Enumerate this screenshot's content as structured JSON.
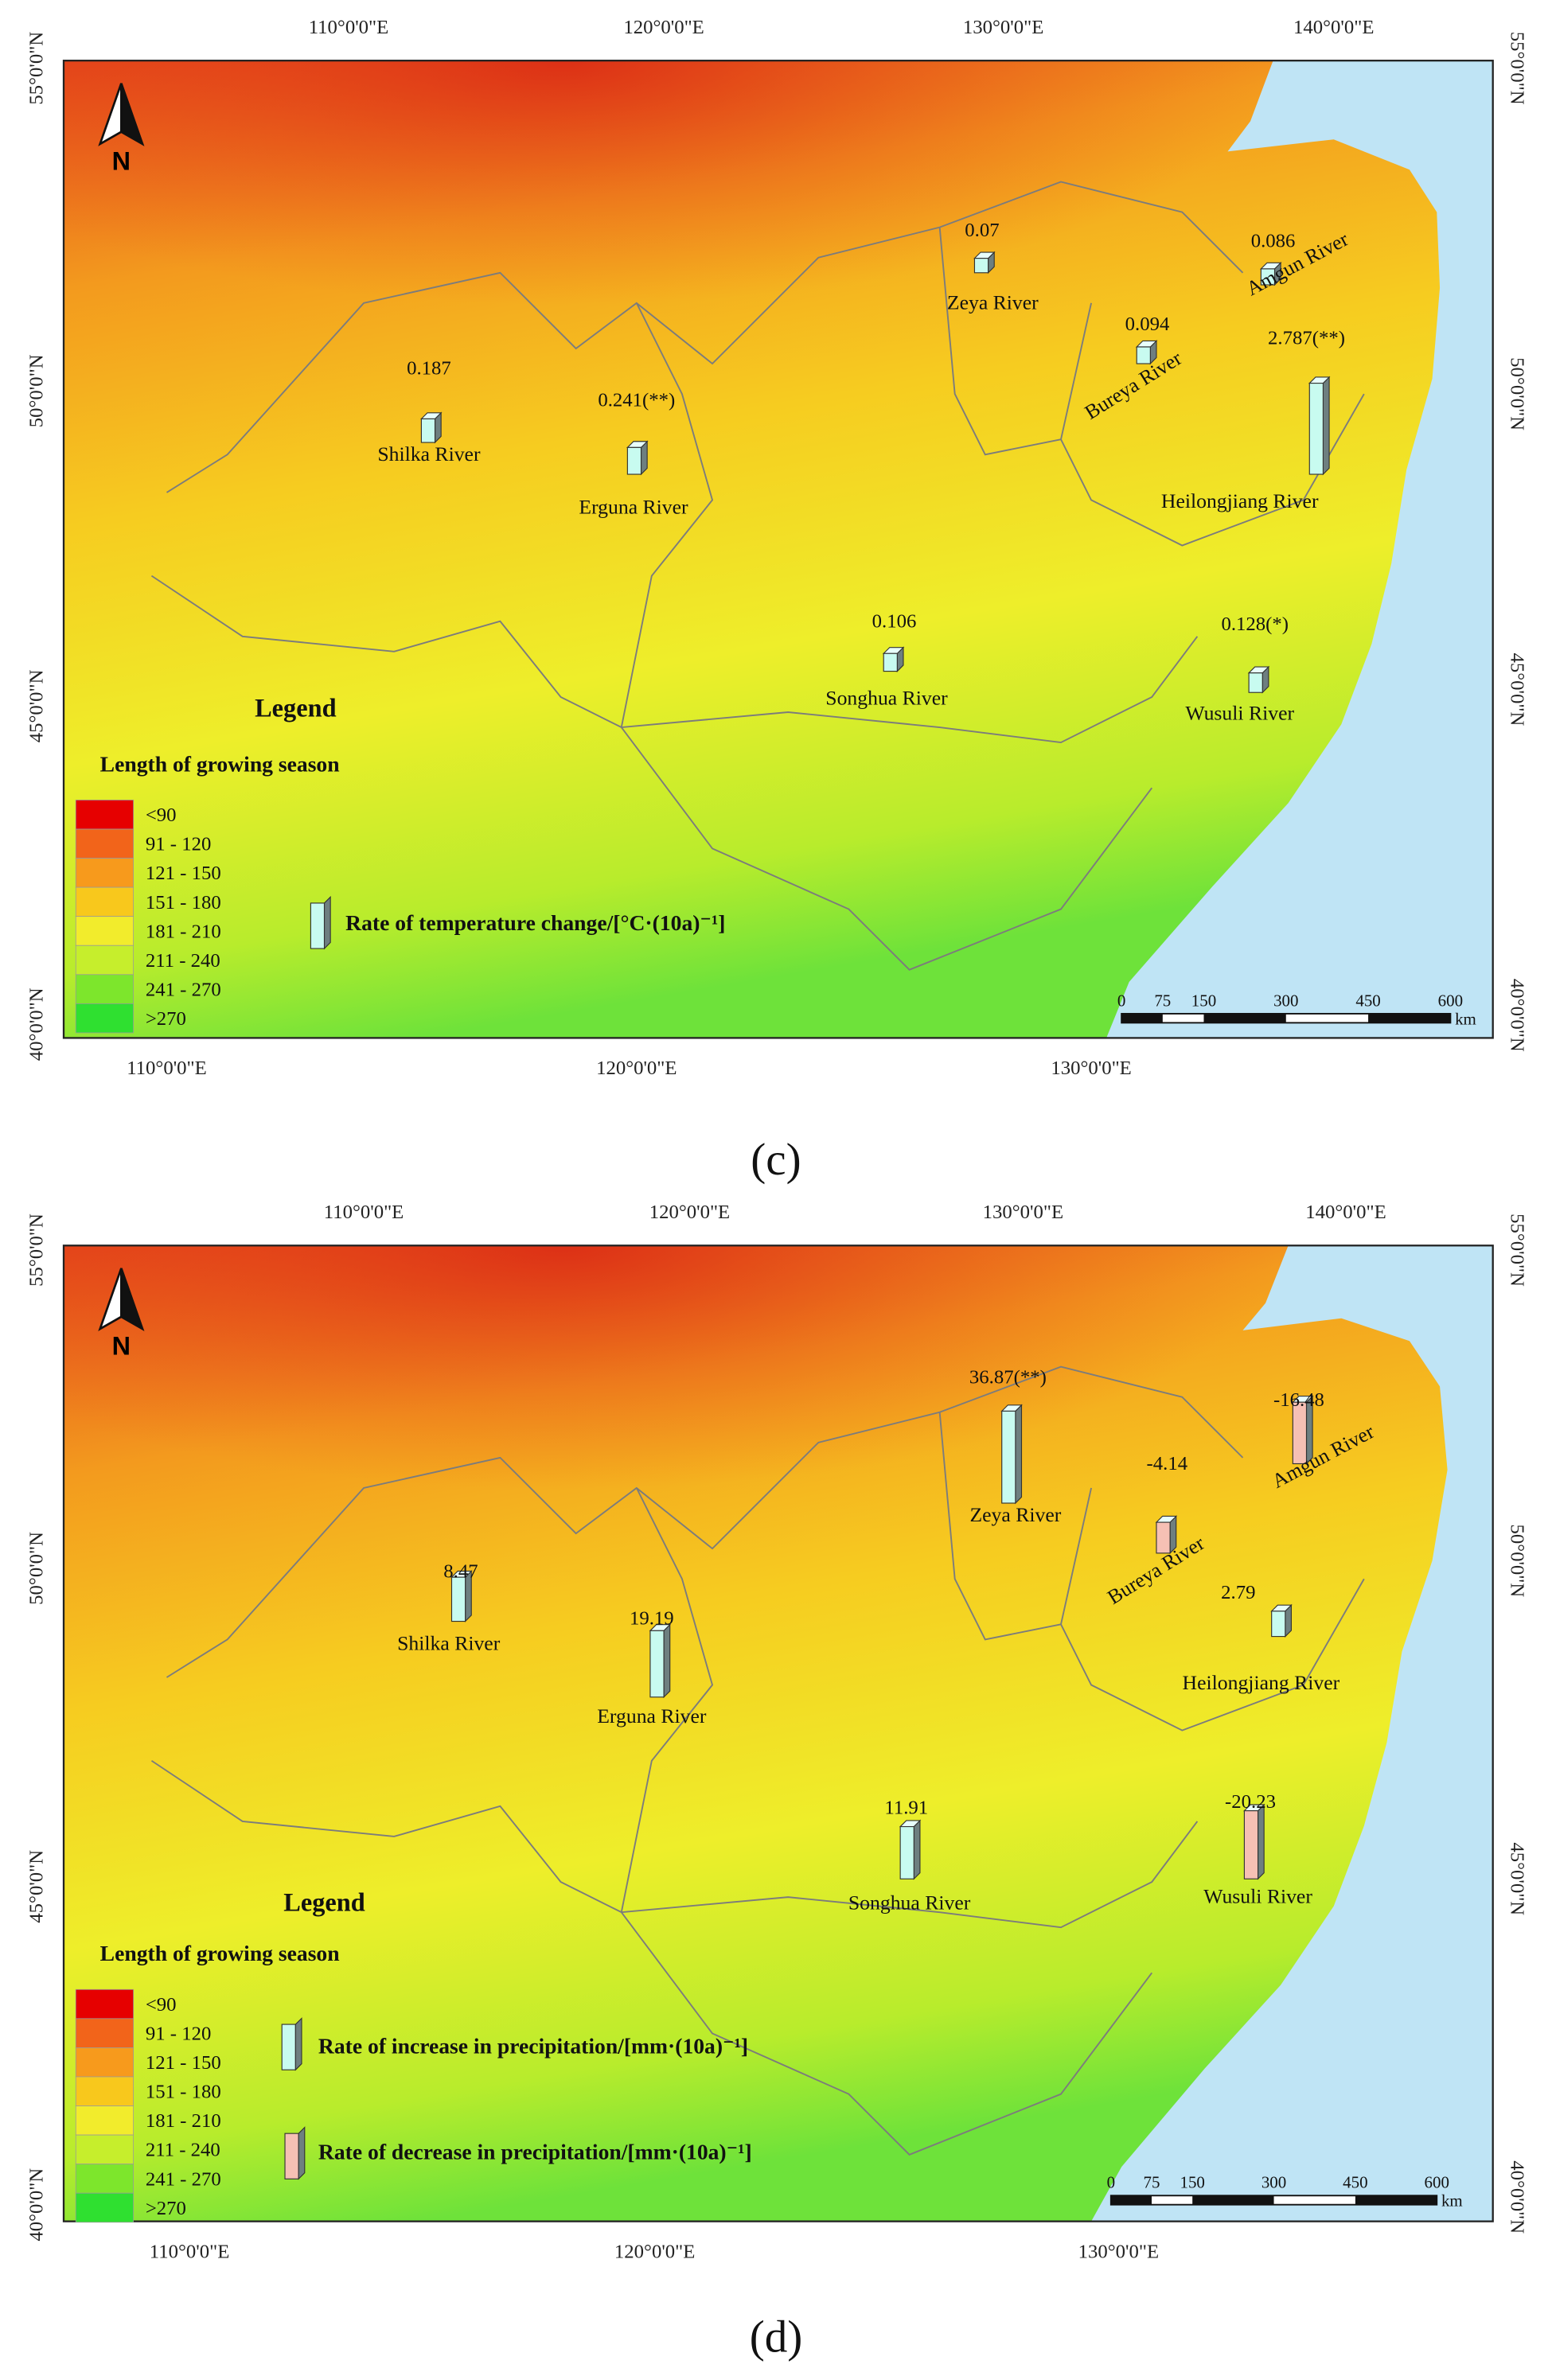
{
  "panels": [
    {
      "caption": "(c)",
      "north": "N",
      "top_ticks": [
        "110°0'0\"E",
        "120°0'0\"E",
        "130°0'0\"E",
        "140°0'0\"E"
      ],
      "bottom_ticks": [
        "110°0'0\"E",
        "120°0'0\"E",
        "130°0'0\"E"
      ],
      "left_ticks": [
        "55°0'0\"N",
        "50°0'0\"N",
        "45°0'0\"N",
        "40°0'0\"N"
      ],
      "right_ticks": [
        "55°0'0\"N",
        "50°0'0\"N",
        "45°0'0\"N",
        "40°0'0\"N"
      ],
      "rivers": [
        {
          "name": "Shilka River",
          "value": 0.187,
          "label": "0.187"
        },
        {
          "name": "Erguna River",
          "value": 0.241,
          "label": "0.241(**)"
        },
        {
          "name": "Zeya River",
          "value": 0.07,
          "label": "0.07"
        },
        {
          "name": "Amgun River",
          "value": 0.086,
          "label": "0.086"
        },
        {
          "name": "Bureya River",
          "value": 0.094,
          "label": "0.094"
        },
        {
          "name": "Heilongjiang River",
          "value": 2.787,
          "label": "2.787(**)"
        },
        {
          "name": "Songhua River",
          "value": 0.106,
          "label": "0.106"
        },
        {
          "name": "Wusuli River",
          "value": 0.128,
          "label": "0.128(*)"
        }
      ],
      "legend": {
        "title": "Legend",
        "subtitle": "Length of growing season",
        "classes": [
          {
            "label": "<90",
            "color": "#e60000"
          },
          {
            "label": "91 - 120",
            "color": "#f2641a"
          },
          {
            "label": "121 - 150",
            "color": "#f79a1c"
          },
          {
            "label": "151 - 180",
            "color": "#f8c81c"
          },
          {
            "label": "181 - 210",
            "color": "#f2ec2c"
          },
          {
            "label": "211 - 240",
            "color": "#c6ee2c"
          },
          {
            "label": "241 - 270",
            "color": "#7de62c"
          },
          {
            "label": ">270",
            "color": "#2fe030"
          }
        ],
        "items": [
          {
            "label": "Rate of temperature change/[°C·(10a)⁻¹]",
            "color": "#c8fbf0"
          }
        ]
      },
      "scale_bar": {
        "ticks": [
          "0",
          "75",
          "150",
          "300",
          "450",
          "600"
        ],
        "unit": "km"
      }
    },
    {
      "caption": "(d)",
      "north": "N",
      "top_ticks": [
        "110°0'0\"E",
        "120°0'0\"E",
        "130°0'0\"E",
        "140°0'0\"E"
      ],
      "bottom_ticks": [
        "110°0'0\"E",
        "120°0'0\"E",
        "130°0'0\"E"
      ],
      "left_ticks": [
        "55°0'0\"N",
        "50°0'0\"N",
        "45°0'0\"N",
        "40°0'0\"N"
      ],
      "right_ticks": [
        "55°0'0\"N",
        "50°0'0\"N",
        "45°0'0\"N",
        "40°0'0\"N"
      ],
      "rivers": [
        {
          "name": "Shilka River",
          "value": 8.47,
          "label": "8.47"
        },
        {
          "name": "Erguna River",
          "value": 19.19,
          "label": "19.19"
        },
        {
          "name": "Zeya River",
          "value": 36.87,
          "label": "36.87(**)"
        },
        {
          "name": "Amgun River",
          "value": -16.48,
          "label": "-16.48"
        },
        {
          "name": "Bureya River",
          "value": -4.14,
          "label": "-4.14"
        },
        {
          "name": "Heilongjiang River",
          "value": 2.79,
          "label": "2.79"
        },
        {
          "name": "Songhua River",
          "value": 11.91,
          "label": "11.91"
        },
        {
          "name": "Wusuli River",
          "value": -20.23,
          "label": "-20.23"
        }
      ],
      "legend": {
        "title": "Legend",
        "subtitle": "Length of growing season",
        "classes": [
          {
            "label": "<90",
            "color": "#e60000"
          },
          {
            "label": "91 - 120",
            "color": "#f2641a"
          },
          {
            "label": "121 - 150",
            "color": "#f79a1c"
          },
          {
            "label": "151 - 180",
            "color": "#f8c81c"
          },
          {
            "label": "181 - 210",
            "color": "#f2ec2c"
          },
          {
            "label": "211 - 240",
            "color": "#c6ee2c"
          },
          {
            "label": "241 - 270",
            "color": "#7de62c"
          },
          {
            "label": ">270",
            "color": "#2fe030"
          }
        ],
        "items": [
          {
            "label": "Rate of increase in precipitation/[mm·(10a)⁻¹]",
            "color": "#c8fbf0"
          },
          {
            "label": "Rate of decrease in precipitation/[mm·(10a)⁻¹]",
            "color": "#f6c0b4"
          }
        ]
      },
      "scale_bar": {
        "ticks": [
          "0",
          "75",
          "150",
          "300",
          "450",
          "600"
        ],
        "unit": "km"
      }
    }
  ]
}
